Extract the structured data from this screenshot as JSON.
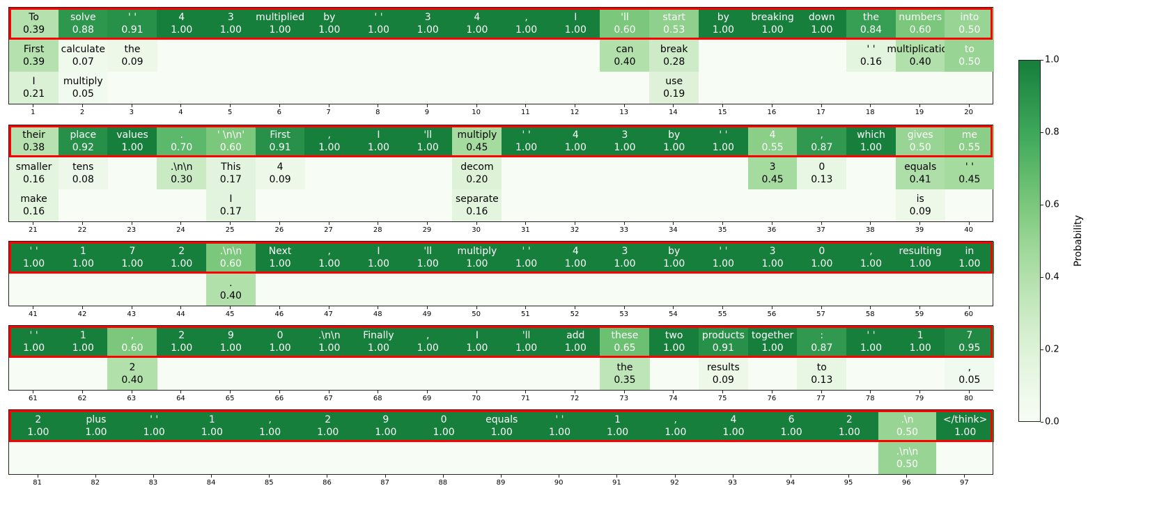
{
  "chart_data": {
    "type": "heatmap",
    "colorbar": {
      "label": "Probability",
      "ticks": [
        "0.0",
        "0.2",
        "0.4",
        "0.6",
        "0.8",
        "1.0"
      ],
      "range": [
        0,
        1
      ]
    },
    "colors": {
      "low": "#f7fcf5",
      "high": "#0e7734",
      "highlight": "#ff0000"
    },
    "panels": [
      {
        "start": 1,
        "rows": 3,
        "columns": [
          [
            [
              "To",
              "0.39"
            ],
            [
              "First",
              "0.39"
            ],
            [
              "I",
              "0.21"
            ]
          ],
          [
            [
              "solve",
              "0.88"
            ],
            [
              "calculate",
              "0.07"
            ],
            [
              "multiply",
              "0.05"
            ]
          ],
          [
            [
              "' '",
              "0.91"
            ],
            [
              "the",
              "0.09"
            ]
          ],
          [
            [
              "4",
              "1.00"
            ]
          ],
          [
            [
              "3",
              "1.00"
            ]
          ],
          [
            [
              "multiplied",
              "1.00"
            ]
          ],
          [
            [
              "by",
              "1.00"
            ]
          ],
          [
            [
              "' '",
              "1.00"
            ]
          ],
          [
            [
              "3",
              "1.00"
            ]
          ],
          [
            [
              "4",
              "1.00"
            ]
          ],
          [
            [
              ",",
              "1.00"
            ]
          ],
          [
            [
              "I",
              "1.00"
            ]
          ],
          [
            [
              "'ll",
              "0.60"
            ],
            [
              "can",
              "0.40"
            ]
          ],
          [
            [
              "start",
              "0.53"
            ],
            [
              "break",
              "0.28"
            ],
            [
              "use",
              "0.19"
            ]
          ],
          [
            [
              "by",
              "1.00"
            ]
          ],
          [
            [
              "breaking",
              "1.00"
            ]
          ],
          [
            [
              "down",
              "1.00"
            ]
          ],
          [
            [
              "the",
              "0.84"
            ],
            [
              "' '",
              "0.16"
            ]
          ],
          [
            [
              "numbers",
              "0.60"
            ],
            [
              "multiplication",
              "0.40"
            ]
          ],
          [
            [
              "into",
              "0.50"
            ],
            [
              "to",
              "0.50"
            ]
          ]
        ]
      },
      {
        "start": 21,
        "rows": 3,
        "columns": [
          [
            [
              "their",
              "0.38"
            ],
            [
              "smaller",
              "0.16"
            ],
            [
              "make",
              "0.16"
            ]
          ],
          [
            [
              "place",
              "0.92"
            ],
            [
              "tens",
              "0.08"
            ]
          ],
          [
            [
              "values",
              "1.00"
            ]
          ],
          [
            [
              ".",
              "0.70"
            ],
            [
              ".\\n\\n",
              "0.30"
            ]
          ],
          [
            [
              "' \\n\\n'",
              "0.60"
            ],
            [
              "This",
              "0.17"
            ],
            [
              "I",
              "0.17"
            ]
          ],
          [
            [
              "First",
              "0.91"
            ],
            [
              "4",
              "0.09"
            ]
          ],
          [
            [
              ",",
              "1.00"
            ]
          ],
          [
            [
              "I",
              "1.00"
            ]
          ],
          [
            [
              "'ll",
              "1.00"
            ]
          ],
          [
            [
              "multiply",
              "0.45"
            ],
            [
              "decom",
              "0.20"
            ],
            [
              "separate",
              "0.16"
            ]
          ],
          [
            [
              "' '",
              "1.00"
            ]
          ],
          [
            [
              "4",
              "1.00"
            ]
          ],
          [
            [
              "3",
              "1.00"
            ]
          ],
          [
            [
              "by",
              "1.00"
            ]
          ],
          [
            [
              "' '",
              "1.00"
            ]
          ],
          [
            [
              "4",
              "0.55"
            ],
            [
              "3",
              "0.45"
            ]
          ],
          [
            [
              ",",
              "0.87"
            ],
            [
              "0",
              "0.13"
            ]
          ],
          [
            [
              "which",
              "1.00"
            ]
          ],
          [
            [
              "gives",
              "0.50"
            ],
            [
              "equals",
              "0.41"
            ],
            [
              "is",
              "0.09"
            ]
          ],
          [
            [
              "me",
              "0.55"
            ],
            [
              "' '",
              "0.45"
            ]
          ]
        ]
      },
      {
        "start": 41,
        "rows": 2,
        "columns": [
          [
            [
              "' '",
              "1.00"
            ]
          ],
          [
            [
              "1",
              "1.00"
            ]
          ],
          [
            [
              "7",
              "1.00"
            ]
          ],
          [
            [
              "2",
              "1.00"
            ]
          ],
          [
            [
              ".\\n\\n",
              "0.60"
            ],
            [
              ".",
              "0.40"
            ]
          ],
          [
            [
              "Next",
              "1.00"
            ]
          ],
          [
            [
              ",",
              "1.00"
            ]
          ],
          [
            [
              "I",
              "1.00"
            ]
          ],
          [
            [
              "'ll",
              "1.00"
            ]
          ],
          [
            [
              "multiply",
              "1.00"
            ]
          ],
          [
            [
              "' '",
              "1.00"
            ]
          ],
          [
            [
              "4",
              "1.00"
            ]
          ],
          [
            [
              "3",
              "1.00"
            ]
          ],
          [
            [
              "by",
              "1.00"
            ]
          ],
          [
            [
              "' '",
              "1.00"
            ]
          ],
          [
            [
              "3",
              "1.00"
            ]
          ],
          [
            [
              "0",
              "1.00"
            ]
          ],
          [
            [
              ",",
              "1.00"
            ]
          ],
          [
            [
              "resulting",
              "1.00"
            ]
          ],
          [
            [
              "in",
              "1.00"
            ]
          ]
        ]
      },
      {
        "start": 61,
        "rows": 2,
        "columns": [
          [
            [
              "' '",
              "1.00"
            ]
          ],
          [
            [
              "1",
              "1.00"
            ]
          ],
          [
            [
              ",",
              "0.60"
            ],
            [
              "2",
              "0.40"
            ]
          ],
          [
            [
              "2",
              "1.00"
            ]
          ],
          [
            [
              "9",
              "1.00"
            ]
          ],
          [
            [
              "0",
              "1.00"
            ]
          ],
          [
            [
              ".\\n\\n",
              "1.00"
            ]
          ],
          [
            [
              "Finally",
              "1.00"
            ]
          ],
          [
            [
              ",",
              "1.00"
            ]
          ],
          [
            [
              "I",
              "1.00"
            ]
          ],
          [
            [
              "'ll",
              "1.00"
            ]
          ],
          [
            [
              "add",
              "1.00"
            ]
          ],
          [
            [
              "these",
              "0.65"
            ],
            [
              "the",
              "0.35"
            ]
          ],
          [
            [
              "two",
              "1.00"
            ]
          ],
          [
            [
              "products",
              "0.91"
            ],
            [
              "results",
              "0.09"
            ]
          ],
          [
            [
              "together",
              "1.00"
            ]
          ],
          [
            [
              ":",
              "0.87"
            ],
            [
              "to",
              "0.13"
            ]
          ],
          [
            [
              "' '",
              "1.00"
            ]
          ],
          [
            [
              "1",
              "1.00"
            ]
          ],
          [
            [
              "7",
              "0.95"
            ],
            [
              ",",
              "0.05"
            ]
          ]
        ]
      },
      {
        "start": 81,
        "rows": 2,
        "columns": [
          [
            [
              "2",
              "1.00"
            ]
          ],
          [
            [
              "plus",
              "1.00"
            ]
          ],
          [
            [
              "' '",
              "1.00"
            ]
          ],
          [
            [
              "1",
              "1.00"
            ]
          ],
          [
            [
              ",",
              "1.00"
            ]
          ],
          [
            [
              "2",
              "1.00"
            ]
          ],
          [
            [
              "9",
              "1.00"
            ]
          ],
          [
            [
              "0",
              "1.00"
            ]
          ],
          [
            [
              "equals",
              "1.00"
            ]
          ],
          [
            [
              "' '",
              "1.00"
            ]
          ],
          [
            [
              "1",
              "1.00"
            ]
          ],
          [
            [
              ",",
              "1.00"
            ]
          ],
          [
            [
              "4",
              "1.00"
            ]
          ],
          [
            [
              "6",
              "1.00"
            ]
          ],
          [
            [
              "2",
              "1.00"
            ]
          ],
          [
            [
              ".\\n",
              "0.50"
            ],
            [
              ".\\n\\n",
              "0.50"
            ]
          ],
          [
            [
              "</think>",
              "1.00"
            ]
          ]
        ]
      }
    ]
  }
}
